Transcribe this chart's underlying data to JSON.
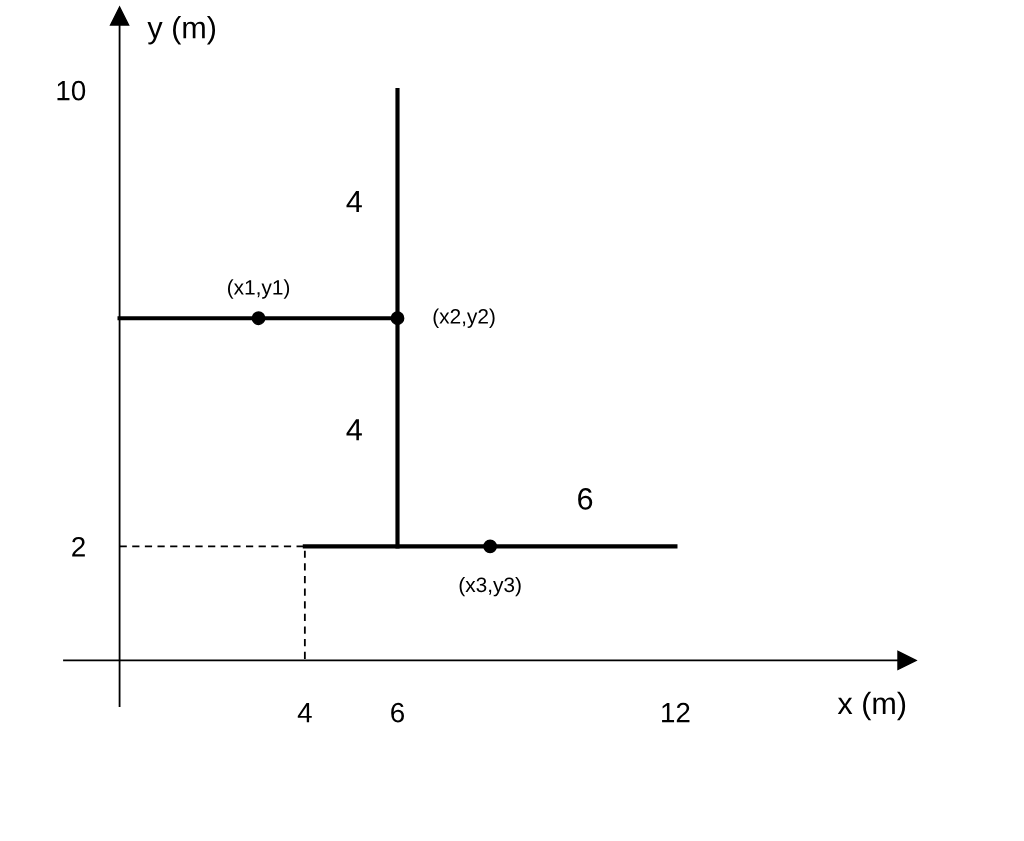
{
  "chart_data": {
    "type": "line",
    "xlabel": "x (m)",
    "ylabel": "y (m)",
    "xlim": [
      -1.2,
      17
    ],
    "ylim": [
      -0.8,
      11.3
    ],
    "xticks": [
      4,
      6,
      12
    ],
    "yticks": [
      2,
      10
    ],
    "grid": false,
    "legend": false,
    "marker": "none",
    "series": [
      {
        "color": "#000000",
        "x": [
          0,
          6
        ],
        "values": [
          6,
          6
        ]
      },
      {
        "color": "#000000",
        "x": [
          6,
          6
        ],
        "values": [
          2,
          10
        ]
      },
      {
        "color": "#000000",
        "x": [
          4,
          12
        ],
        "values": [
          2,
          2
        ]
      },
      {
        "color": "#000000",
        "line_style": "dashed",
        "x": [
          0,
          4,
          4
        ],
        "values": [
          2,
          2,
          0
        ]
      },
      {
        "type": "scatter",
        "color": "#000000",
        "marker": "circle",
        "x": [
          3,
          6,
          8
        ],
        "values": [
          6,
          6,
          2
        ]
      }
    ],
    "annotations": [
      {
        "text": "(x1,y1)",
        "x": 3,
        "y": 6
      },
      {
        "text": "(x2,y2)",
        "x": 6,
        "y": 6
      },
      {
        "text": "(x3,y3)",
        "x": 8,
        "y": 2
      },
      {
        "text": "4",
        "x": 6,
        "y": 8
      },
      {
        "text": "4",
        "x": 6,
        "y": 4
      },
      {
        "text": "6",
        "x": 9,
        "y": 2
      }
    ]
  }
}
